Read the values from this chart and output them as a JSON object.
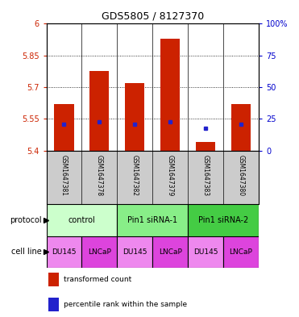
{
  "title": "GDS5805 / 8127370",
  "samples": [
    "GSM1647381",
    "GSM1647378",
    "GSM1647382",
    "GSM1647379",
    "GSM1647383",
    "GSM1647380"
  ],
  "bar_tops": [
    5.62,
    5.775,
    5.72,
    5.93,
    5.44,
    5.62
  ],
  "bar_bottoms": [
    5.4,
    5.4,
    5.4,
    5.4,
    5.4,
    5.4
  ],
  "blue_values": [
    5.525,
    5.535,
    5.525,
    5.535,
    5.505,
    5.525
  ],
  "ylim": [
    5.4,
    6.0
  ],
  "yticks_left": [
    5.4,
    5.55,
    5.7,
    5.85,
    6.0
  ],
  "yticks_right": [
    0,
    25,
    50,
    75,
    100
  ],
  "ytick_labels_left": [
    "5.4",
    "5.55",
    "5.7",
    "5.85",
    "6"
  ],
  "ytick_labels_right": [
    "0",
    "25",
    "50",
    "75",
    "100%"
  ],
  "bar_color": "#cc2200",
  "blue_color": "#2222cc",
  "protocol_groups": [
    {
      "label": "control",
      "start": 0,
      "end": 2,
      "color": "#ccffcc"
    },
    {
      "label": "Pin1 siRNA-1",
      "start": 2,
      "end": 4,
      "color": "#88ee88"
    },
    {
      "label": "Pin1 siRNA-2",
      "start": 4,
      "end": 6,
      "color": "#44cc44"
    }
  ],
  "cell_lines": [
    "DU145",
    "LNCaP",
    "DU145",
    "LNCaP",
    "DU145",
    "LNCaP"
  ],
  "cell_line_colors_map": {
    "DU145": "#ee88ee",
    "LNCaP": "#dd44dd"
  },
  "sample_bg": "#cccccc",
  "left_axis_color": "#cc2200",
  "right_axis_color": "#0000cc",
  "legend_red_label": "transformed count",
  "legend_blue_label": "percentile rank within the sample",
  "dotted_gridlines": [
    5.55,
    5.7,
    5.85
  ]
}
